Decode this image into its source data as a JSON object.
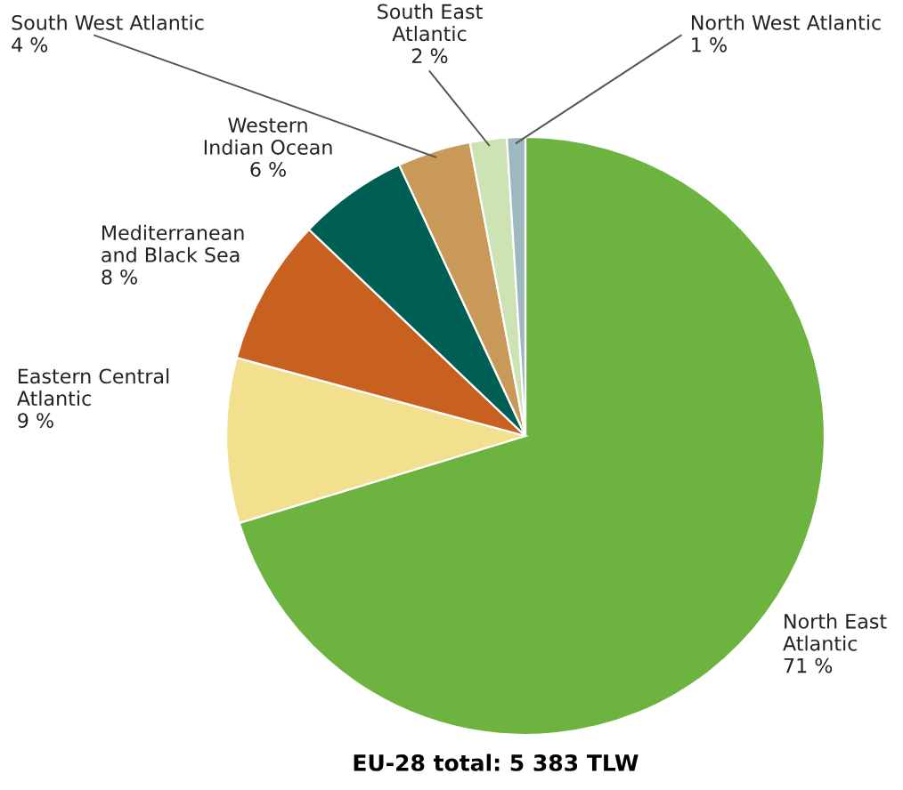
{
  "chart_data": {
    "type": "pie",
    "categories": [
      "North East\nAtlantic",
      "Eastern Central\nAtlantic",
      "Mediterranean\nand Black Sea",
      "Western\nIndian Ocean",
      "South West Atlantic",
      "South East\nAtlantic",
      "North West Atlantic"
    ],
    "values": [
      71,
      9,
      8,
      6,
      4,
      2,
      1
    ],
    "value_labels": [
      "71 %",
      "9 %",
      "8 %",
      "6 %",
      "4 %",
      "2 %",
      "1 %"
    ],
    "colors": [
      "#6cb33f",
      "#f3e08f",
      "#c8601f",
      "#005f55",
      "#c9995a",
      "#cde3b4",
      "#9fb8c0"
    ],
    "annotations": [
      "EU-28 total: 5 383 TLW"
    ]
  }
}
